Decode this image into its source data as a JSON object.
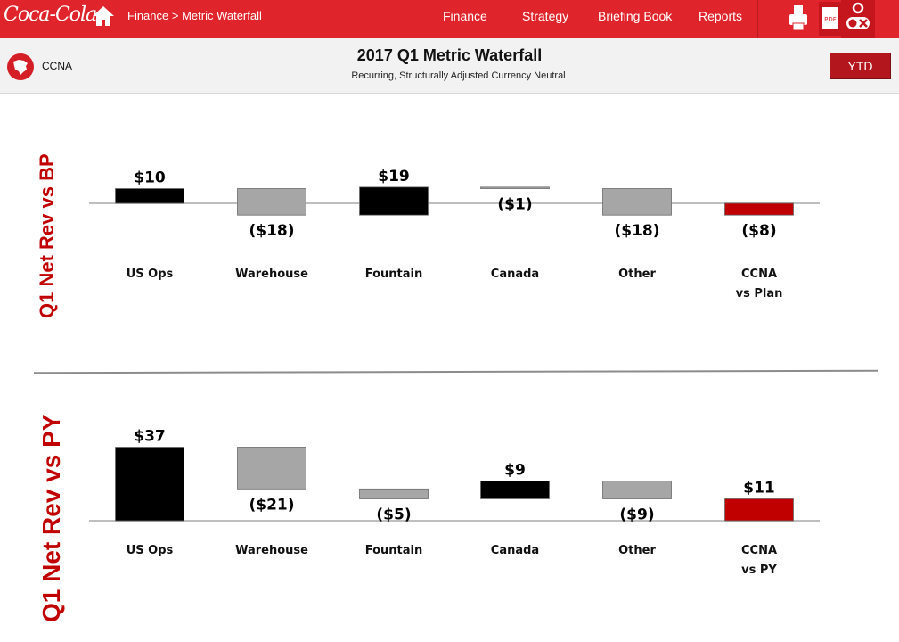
{
  "header": {
    "logo": "Coca-Cola",
    "home_icon": "home-icon",
    "breadcrumb": "Finance > Metric Waterfall",
    "nav": [
      "Finance",
      "Strategy",
      "Briefing Book",
      "Reports"
    ],
    "tools": {
      "print_icon": "printer-icon",
      "pdf_label": "PDF",
      "settings_icon": "toggle-icon"
    },
    "brand_color": "#e0242b"
  },
  "subheader": {
    "region": "CCNA",
    "title": "2017 Q1 Metric Waterfall",
    "subtitle": "Recurring, Structurally Adjusted Currency Neutral",
    "ytd_button": "YTD"
  },
  "chart_data": [
    {
      "type": "bar",
      "subtype": "waterfall",
      "title": "Q1 Net Rev vs BP",
      "categories": [
        [
          "US Ops"
        ],
        [
          "Warehouse"
        ],
        [
          "Fountain"
        ],
        [
          "Canada"
        ],
        [
          "Other"
        ],
        [
          "CCNA",
          "vs Plan"
        ]
      ],
      "values": [
        10,
        -18,
        19,
        -1,
        -18,
        -8
      ],
      "labels": [
        "$10",
        "($18)",
        "$19",
        "($1)",
        "($18)",
        "($8)"
      ],
      "bar_kind": [
        "increase",
        "decrease",
        "increase",
        "decrease",
        "decrease",
        "total"
      ],
      "colors": {
        "increase": "#000000",
        "decrease": "#a6a6a6",
        "total": "#c00000"
      }
    },
    {
      "type": "bar",
      "subtype": "waterfall",
      "title": "Q1 Net Rev vs PY",
      "categories": [
        [
          "US Ops"
        ],
        [
          "Warehouse"
        ],
        [
          "Fountain"
        ],
        [
          "Canada"
        ],
        [
          "Other"
        ],
        [
          "CCNA",
          "vs PY"
        ]
      ],
      "values": [
        37,
        -21,
        -5,
        9,
        -9,
        11
      ],
      "labels": [
        "$37",
        "($21)",
        "($5)",
        "$9",
        "($9)",
        "$11"
      ],
      "bar_kind": [
        "increase",
        "decrease",
        "decrease",
        "increase",
        "decrease",
        "total"
      ],
      "colors": {
        "increase": "#000000",
        "decrease": "#a6a6a6",
        "total": "#c00000"
      }
    }
  ]
}
